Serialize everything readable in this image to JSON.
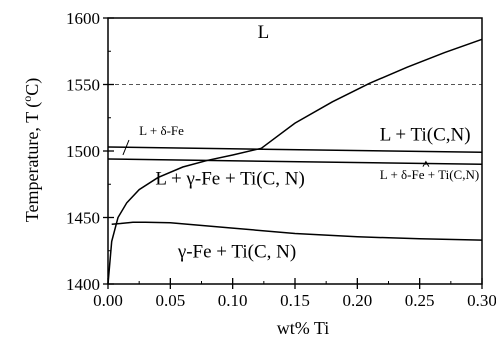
{
  "chart_data": {
    "type": "line",
    "title": "",
    "xlabel": "wt% Ti",
    "ylabel": "Temperature, T (°C)",
    "ylabel_parts": {
      "before": "Temperature, T (",
      "sup": "o",
      "after": "C)"
    },
    "xlim": [
      0.0,
      0.3
    ],
    "ylim": [
      1400,
      1600
    ],
    "xticks": [
      0.0,
      0.05,
      0.1,
      0.15,
      0.2,
      0.25,
      0.3
    ],
    "xtick_labels": [
      "0.00",
      "0.05",
      "0.10",
      "0.15",
      "0.20",
      "0.25",
      "0.30"
    ],
    "yticks": [
      1400,
      1450,
      1500,
      1550,
      1600
    ],
    "ytick_labels": [
      "1400",
      "1450",
      "1500",
      "1550",
      "1600"
    ],
    "grid": false,
    "reference_line": {
      "y": 1550,
      "style": "dashed"
    },
    "series": [
      {
        "x": [
          0.123,
          0.15,
          0.18,
          0.21,
          0.24,
          0.27,
          0.3
        ],
        "y": [
          1502,
          1521,
          1537,
          1551,
          1563,
          1574,
          1584
        ]
      },
      {
        "x": [
          0.0,
          0.3
        ],
        "y": [
          1503,
          1499
        ]
      },
      {
        "x": [
          0.0,
          0.3
        ],
        "y": [
          1494,
          1490
        ]
      },
      {
        "x": [
          0.0,
          0.003,
          0.008,
          0.015,
          0.025,
          0.04,
          0.06,
          0.08,
          0.1,
          0.123
        ],
        "y": [
          1400,
          1432,
          1450,
          1461,
          1471,
          1480,
          1488,
          1493,
          1497,
          1502
        ]
      },
      {
        "x": [
          0.003,
          0.01,
          0.02,
          0.03,
          0.05,
          0.1,
          0.15,
          0.2,
          0.25,
          0.3
        ],
        "y": [
          1445,
          1445.5,
          1446.5,
          1446.5,
          1446,
          1442,
          1438,
          1435.5,
          1434,
          1433
        ]
      }
    ],
    "annotations": [
      {
        "label": "L",
        "x": 0.12,
        "y": 1585,
        "size": "lg"
      },
      {
        "label": "L + δ-Fe",
        "x": 0.025,
        "y": 1512,
        "size": "sm",
        "arrow_to": [
          0.012,
          1497
        ]
      },
      {
        "label": "L + Ti(C,N)",
        "x": 0.218,
        "y": 1508,
        "size": "lg"
      },
      {
        "label": "L + γ-Fe + Ti(C, N)",
        "x": 0.038,
        "y": 1475,
        "size": "lg"
      },
      {
        "label": "L + δ-Fe + Ti(C,N)",
        "x": 0.218,
        "y": 1479,
        "size": "sm",
        "arrow_to": [
          0.255,
          1492
        ]
      },
      {
        "label": "γ-Fe + Ti(C, N)",
        "x": 0.056,
        "y": 1420,
        "size": "lg"
      }
    ]
  }
}
